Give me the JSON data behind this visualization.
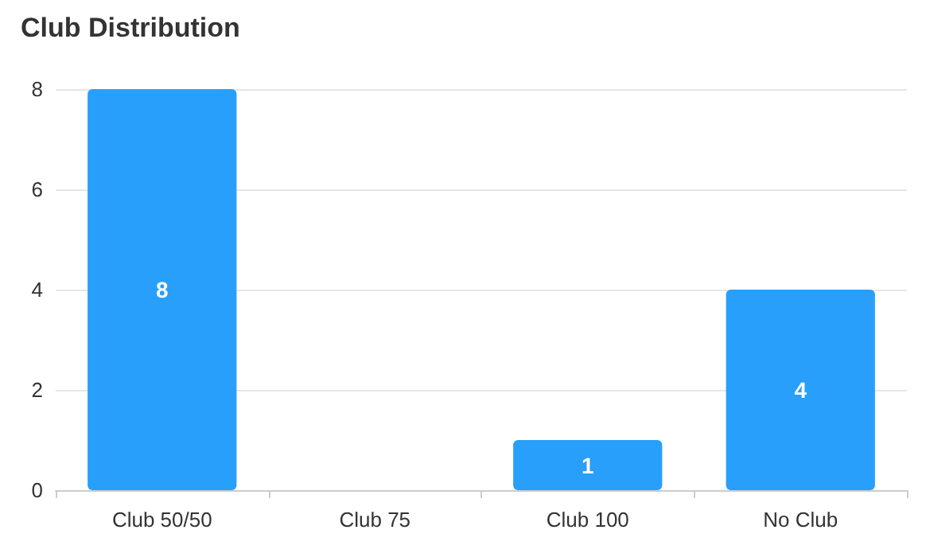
{
  "chart_data": {
    "type": "bar",
    "title": "Club Distribution",
    "categories": [
      "Club 50/50",
      "Club 75",
      "Club 100",
      "No Club"
    ],
    "values": [
      8,
      0,
      1,
      4
    ],
    "value_labels": [
      "8",
      null,
      "1",
      "4"
    ],
    "color": "#289ffa",
    "ylim": [
      0,
      8
    ],
    "yticks": [
      0,
      2,
      4,
      6,
      8
    ],
    "grid": "y"
  }
}
